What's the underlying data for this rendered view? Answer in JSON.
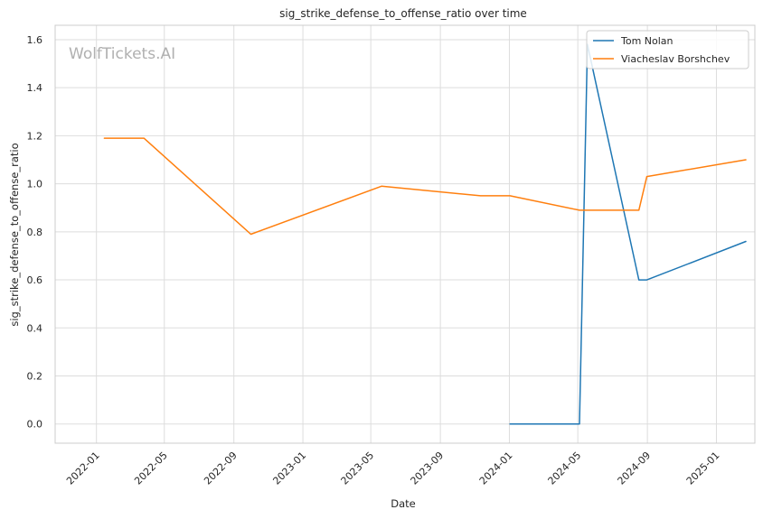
{
  "chart_data": {
    "type": "line",
    "title": "sig_strike_defense_to_offense_ratio over time",
    "xlabel": "Date",
    "ylabel": "sig_strike_defense_to_offense_ratio",
    "watermark": "WolfTickets.AI",
    "xlim": [
      "2021-10-20",
      "2025-03-10"
    ],
    "ylim": [
      -0.08,
      1.66
    ],
    "x_ticks": [
      "2022-01",
      "2022-05",
      "2022-09",
      "2023-01",
      "2023-05",
      "2023-09",
      "2024-01",
      "2024-05",
      "2024-09",
      "2025-01"
    ],
    "y_ticks": [
      "0.0",
      "0.2",
      "0.4",
      "0.6",
      "0.8",
      "1.0",
      "1.2",
      "1.4",
      "1.6"
    ],
    "grid": true,
    "legend_position": "top-right",
    "series": [
      {
        "name": "Tom Nolan",
        "color": "#1f77b4",
        "x": [
          "2024-01-02",
          "2024-05-04",
          "2024-05-18",
          "2024-08-17",
          "2024-08-31",
          "2025-02-22"
        ],
        "y": [
          0.0,
          0.0,
          1.58,
          0.6,
          0.6,
          0.76
        ]
      },
      {
        "name": "Viacheslav Borshchev",
        "color": "#ff7f0e",
        "x": [
          "2022-01-15",
          "2022-03-26",
          "2022-10-01",
          "2023-05-20",
          "2023-11-11",
          "2024-01-02",
          "2024-05-04",
          "2024-08-17",
          "2024-08-31",
          "2025-02-22"
        ],
        "y": [
          1.19,
          1.19,
          0.79,
          0.99,
          0.95,
          0.95,
          0.89,
          0.89,
          1.03,
          1.1
        ]
      }
    ]
  }
}
